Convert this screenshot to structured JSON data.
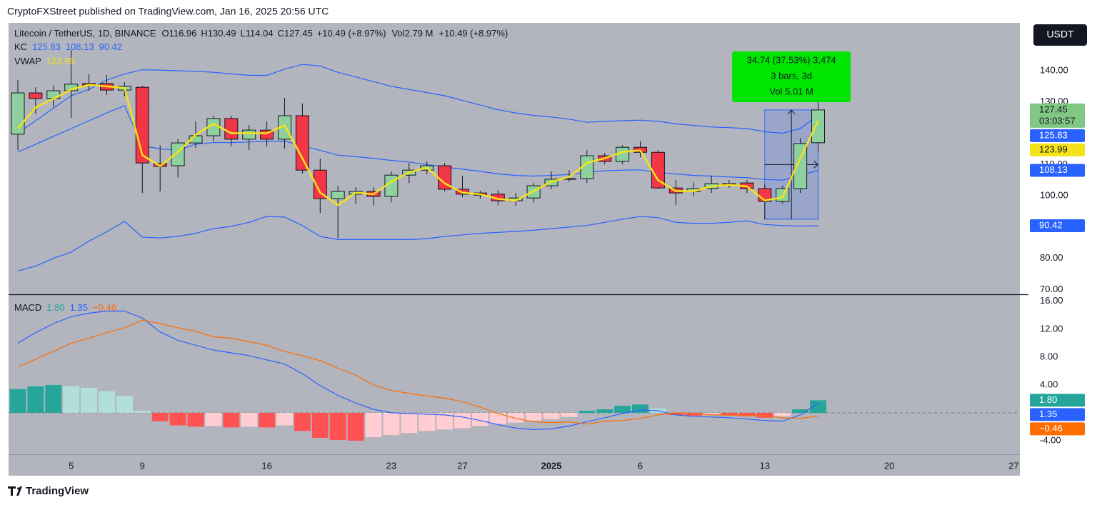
{
  "header": "CryptoFXStreet published on TradingView.com, Jan 16, 2025 20:56 UTC",
  "currency": "USDT",
  "footer": "TradingView",
  "chart_data": {
    "type": "candlestick",
    "legend": {
      "symbol": "Litecoin / TetherUS, 1D, BINANCE",
      "ohlc": [
        {
          "k": "O",
          "v": 116.96
        },
        {
          "k": "H",
          "v": 130.49
        },
        {
          "k": "L",
          "v": 114.04
        },
        {
          "k": "C",
          "v": 127.45
        }
      ],
      "change": "+10.49 (+8.97%)",
      "vol_label": "Vol",
      "vol": "2.79 M",
      "change2": "+10.49 (+8.97%)"
    },
    "categories": [
      null,
      null,
      null,
      "5",
      null,
      null,
      null,
      "9",
      null,
      null,
      null,
      null,
      null,
      null,
      "16",
      null,
      null,
      null,
      null,
      null,
      null,
      "23",
      null,
      null,
      null,
      "27",
      null,
      null,
      null,
      null,
      "2025",
      null,
      null,
      null,
      null,
      "6",
      null,
      null,
      null,
      null,
      null,
      null,
      "13",
      null,
      null,
      null,
      null,
      null,
      null,
      "20",
      null,
      null,
      null,
      null,
      null,
      null,
      "27"
    ],
    "open": [
      119.7,
      132.9,
      131.1,
      133.6,
      135.9,
      135.9,
      133.8,
      134.7,
      110.3,
      109.6,
      116.9,
      119.2,
      124.7,
      118.1,
      121.0,
      118.1,
      125.6,
      108.2,
      99.1,
      100.5,
      101.4,
      99.8,
      106.6,
      108.2,
      109.6,
      102.1,
      100.9,
      100.5,
      98.4,
      99.3,
      103.2,
      105.3,
      105.5,
      112.8,
      111.0,
      115.5,
      113.9,
      102.5,
      101.4,
      102.3,
      103.9,
      104.1,
      102.3,
      98.2,
      102.3,
      116.96,
      null,
      null,
      null,
      null,
      null,
      null,
      null,
      null,
      null,
      null,
      null
    ],
    "high": [
      137.0,
      134.7,
      135.2,
      146.6,
      138.9,
      138.6,
      136.3,
      135.2,
      116.1,
      118.1,
      123.8,
      125.6,
      125.6,
      122.6,
      123.8,
      131.3,
      129.5,
      111.9,
      103.2,
      102.7,
      102.7,
      107.8,
      110.5,
      111.0,
      110.5,
      106.4,
      101.6,
      101.8,
      100.9,
      104.1,
      107.8,
      108.2,
      114.6,
      113.7,
      116.2,
      117.4,
      114.6,
      105.0,
      104.3,
      106.4,
      105.0,
      105.0,
      103.6,
      103.2,
      118.5,
      130.49,
      null,
      null,
      null,
      null,
      null,
      null,
      null,
      null,
      null,
      null,
      null
    ],
    "low": [
      114.6,
      126.1,
      128.3,
      124.9,
      133.6,
      132.2,
      131.8,
      100.9,
      101.4,
      105.9,
      115.3,
      117.4,
      115.8,
      114.6,
      115.8,
      115.1,
      107.1,
      94.5,
      86.5,
      97.5,
      96.8,
      97.9,
      104.1,
      106.9,
      101.4,
      99.5,
      99.1,
      97.0,
      96.8,
      97.9,
      102.1,
      104.6,
      104.1,
      110.1,
      110.1,
      112.3,
      102.1,
      97.0,
      99.8,
      100.9,
      102.5,
      100.9,
      92.5,
      97.5,
      100.9,
      114.04,
      null,
      null,
      null,
      null,
      null,
      null,
      null,
      null,
      null,
      null,
      null
    ],
    "close": [
      132.9,
      131.1,
      133.6,
      135.7,
      135.4,
      133.8,
      135.0,
      110.5,
      109.4,
      116.9,
      119.2,
      124.7,
      118.1,
      121.0,
      118.1,
      125.6,
      108.2,
      99.1,
      101.4,
      101.4,
      99.8,
      106.6,
      108.2,
      109.6,
      102.1,
      100.5,
      100.2,
      98.4,
      99.3,
      103.2,
      105.3,
      105.5,
      112.8,
      111.0,
      115.5,
      113.9,
      102.5,
      100.9,
      102.3,
      103.9,
      103.4,
      102.3,
      98.2,
      102.3,
      116.7,
      127.45,
      null,
      null,
      null,
      null,
      null,
      null,
      null,
      null,
      null,
      null,
      null
    ],
    "up_color": "#8fd19e",
    "down_color": "#f23645",
    "countdown": "03:03:57",
    "ylim": [
      68.5,
      155.3
    ],
    "yticks": [
      {
        "value": 70,
        "label": "70.00"
      },
      {
        "value": 80,
        "label": "80.00"
      },
      {
        "value": 100,
        "label": "100.00"
      },
      {
        "value": 110,
        "label": "110.00"
      },
      {
        "value": 130,
        "label": "130.00"
      },
      {
        "value": 140,
        "label": "140.00"
      }
    ],
    "grid": false,
    "kc": {
      "label": "KC",
      "legend": [
        "125.83",
        "108.13",
        "90.42"
      ],
      "color": "#2962ff",
      "upper": [
        120,
        124,
        128,
        132,
        134,
        137,
        139,
        140.3,
        140.2,
        140,
        139.8,
        139.5,
        139,
        138.5,
        138.5,
        140.5,
        142,
        141.5,
        139.5,
        138,
        136.5,
        135,
        134,
        133,
        132,
        130.5,
        129,
        127.5,
        126.5,
        125.7,
        125.2,
        124.5,
        123.5,
        123.8,
        124,
        124.2,
        123.8,
        123,
        122.5,
        122,
        121.8,
        121.5,
        120.5,
        120,
        121.5,
        125.83,
        null,
        null,
        null,
        null,
        null,
        null,
        null,
        null,
        null,
        null,
        null
      ],
      "basis": [
        114,
        116.5,
        119,
        121.5,
        124,
        126.5,
        128.8,
        116,
        115,
        114.6,
        116.5,
        117,
        117,
        117.2,
        117.4,
        117.5,
        116,
        114.5,
        113,
        112.5,
        112,
        111.3,
        110.8,
        110,
        109.2,
        108.5,
        107.8,
        107,
        106.5,
        106.3,
        106.5,
        106.8,
        107.5,
        108,
        108.2,
        108.3,
        107.5,
        107,
        106.5,
        106.3,
        106,
        105.8,
        105.2,
        105,
        106.5,
        108.13,
        null,
        null,
        null,
        null,
        null,
        null,
        null,
        null,
        null,
        null,
        null
      ],
      "lower": [
        76,
        77.5,
        80,
        82,
        85.5,
        88.5,
        91.8,
        86.8,
        86.5,
        87,
        88,
        89.5,
        90.2,
        91.5,
        93.4,
        93.2,
        90.5,
        87,
        86,
        86,
        86,
        86,
        86,
        86.3,
        87,
        87.5,
        88,
        88.3,
        88.6,
        89,
        89.5,
        90,
        90.5,
        91.5,
        92.5,
        93.4,
        93,
        91.5,
        91.2,
        91.2,
        91.5,
        92,
        90.8,
        90.5,
        90.3,
        90.42,
        null,
        null,
        null,
        null,
        null,
        null,
        null,
        null,
        null,
        null,
        null
      ]
    },
    "vwap": {
      "label": "VWAP",
      "legend": "123.99",
      "color": "#f5e31a",
      "values": [
        121.5,
        128.3,
        131,
        134,
        135.5,
        135,
        134.5,
        113,
        109.5,
        114,
        119.5,
        123,
        120,
        120,
        120,
        122.5,
        112,
        101,
        97,
        101,
        100.5,
        104.5,
        107.5,
        109,
        104,
        101,
        100.5,
        99,
        98.5,
        101.5,
        104.5,
        106,
        110.5,
        112,
        114,
        114.5,
        105,
        101.5,
        101.5,
        103,
        103.5,
        103,
        98.5,
        99.5,
        112,
        123.99,
        null,
        null,
        null,
        null,
        null,
        null,
        null,
        null,
        null,
        null,
        null
      ]
    },
    "measure": [
      "34.74 (37.53%) 3,474",
      "3 bars, 3d",
      "Vol 5.01 M"
    ],
    "macd": {
      "label": "MACD",
      "legend": [
        "1.80",
        "1.35",
        "−0.46"
      ],
      "macd_color": "#2962ff",
      "signal_color": "#ff6d00",
      "legend_hist_color": "#26a69a",
      "hist_colors": {
        "rising_positive": "#26a69a",
        "falling_positive": "#b2dfdb",
        "falling_negative": "#ff5252",
        "rising_negative": "#ffcdd2"
      },
      "histogram": [
        3.4,
        3.8,
        4.0,
        3.8,
        3.6,
        3.1,
        2.4,
        0.3,
        -1.2,
        -1.8,
        -2.0,
        -1.9,
        -2.1,
        -2.0,
        -2.1,
        -1.8,
        -2.6,
        -3.6,
        -3.9,
        -4.0,
        -3.5,
        -3.2,
        -2.9,
        -2.6,
        -2.4,
        -2.2,
        -1.9,
        -1.6,
        -1.4,
        -1.1,
        -0.9,
        -0.6,
        0.3,
        0.5,
        1.0,
        1.2,
        0.6,
        -0.3,
        -0.4,
        -0.3,
        -0.4,
        -0.5,
        -0.7,
        -0.5,
        0.5,
        1.8,
        null,
        null,
        null,
        null,
        null,
        null,
        null,
        null,
        null,
        null,
        null
      ],
      "macd": [
        10.0,
        11.5,
        12.8,
        13.8,
        14.3,
        14.6,
        14.6,
        13.6,
        11.6,
        10.4,
        9.7,
        9.0,
        8.6,
        8.2,
        7.6,
        7.0,
        5.6,
        3.9,
        2.5,
        1.4,
        0.5,
        0.0,
        -0.1,
        -0.2,
        -0.3,
        -0.6,
        -1.1,
        -1.7,
        -2.2,
        -2.4,
        -2.3,
        -1.9,
        -1.3,
        -0.7,
        -0.1,
        0.4,
        0.3,
        -0.3,
        -0.5,
        -0.6,
        -0.7,
        -0.9,
        -1.1,
        -1.2,
        -0.3,
        1.35,
        null,
        null,
        null,
        null,
        null,
        null,
        null,
        null,
        null,
        null,
        null
      ],
      "signal": [
        6.6,
        7.7,
        8.8,
        10.0,
        10.7,
        11.5,
        12.2,
        13.3,
        12.8,
        12.2,
        11.7,
        10.9,
        10.7,
        10.2,
        9.7,
        8.8,
        8.2,
        7.5,
        6.4,
        5.4,
        4.0,
        3.2,
        2.8,
        2.4,
        2.1,
        1.6,
        0.8,
        -0.1,
        -0.8,
        -1.3,
        -1.4,
        -1.3,
        -1.6,
        -1.2,
        -1.1,
        -0.8,
        -0.3,
        0.0,
        -0.1,
        -0.3,
        -0.3,
        -0.4,
        -0.4,
        -0.7,
        -0.8,
        -0.46,
        null,
        null,
        null,
        null,
        null,
        null,
        null,
        null,
        null,
        null,
        null
      ],
      "ylim": [
        -5.95,
        16.8
      ],
      "yticks": [
        {
          "value": -4,
          "label": "-4.00"
        },
        {
          "value": 4,
          "label": "4.00"
        },
        {
          "value": 8,
          "label": "8.00"
        },
        {
          "value": 12,
          "label": "12.00"
        },
        {
          "value": 16,
          "label": "16.00"
        }
      ]
    }
  }
}
